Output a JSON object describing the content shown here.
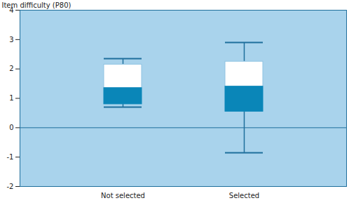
{
  "chart_data": {
    "type": "box",
    "ylabel": "Item difficulty (P80)",
    "categories": [
      "Not selected",
      "Selected"
    ],
    "min": [
      0.7,
      -0.85
    ],
    "q1": [
      0.8,
      0.55
    ],
    "median": [
      1.35,
      1.4
    ],
    "q3": [
      2.15,
      2.25
    ],
    "max": [
      2.35,
      2.9
    ],
    "color": "#0a86b8",
    "ylim": [
      -2,
      4
    ],
    "yticks": [
      -2,
      -1,
      0,
      1,
      2,
      3,
      4
    ],
    "grid": false
  }
}
